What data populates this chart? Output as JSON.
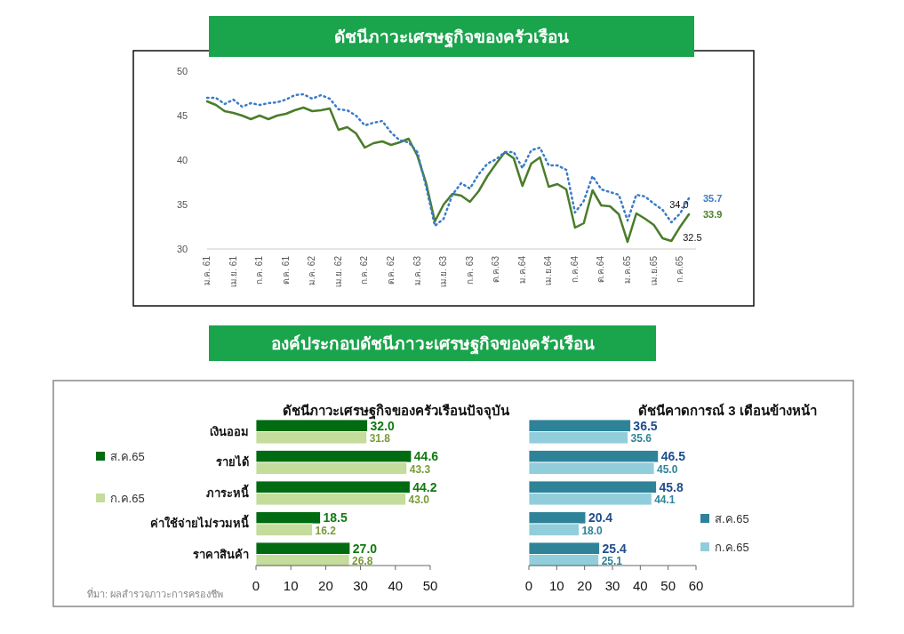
{
  "chart_data": [
    {
      "type": "line",
      "title": "ดัชนีภาวะเศรษฐกิจของครัวเรือน",
      "categories": [
        "ม.ค. 61",
        null,
        null,
        "เม.ย. 61",
        null,
        null,
        "ก.ค. 61",
        null,
        null,
        "ต.ค. 61",
        null,
        null,
        "ม.ค. 62",
        null,
        null,
        "เม.ย. 62",
        null,
        null,
        "ก.ค. 62",
        null,
        null,
        "ต.ค. 62",
        null,
        null,
        "ม.ค. 63",
        null,
        null,
        "เม.ย. 63",
        null,
        null,
        "ก.ค. 63",
        null,
        null,
        "ต.ค.63",
        null,
        null,
        "ม.ค.64",
        null,
        null,
        "เม.ย.64",
        null,
        null,
        "ก.ค.64",
        null,
        null,
        "ต.ค.64",
        null,
        null,
        "ม.ค.65",
        null,
        null,
        "เม.ย.65",
        null,
        null,
        "ก.ค.65",
        null
      ],
      "series": [
        {
          "color": "#4a7d2a",
          "line_style": "solid",
          "values": [
            46.6,
            46.2,
            45.5,
            45.3,
            45.0,
            44.6,
            45.0,
            44.6,
            45.0,
            45.2,
            45.6,
            45.9,
            45.5,
            45.6,
            45.8,
            43.4,
            43.7,
            43.0,
            41.4,
            41.9,
            42.1,
            41.7,
            42.0,
            42.4,
            40.5,
            37.4,
            33.1,
            35.0,
            36.2,
            36.0,
            35.3,
            36.5,
            38.2,
            39.6,
            40.9,
            40.2,
            37.1,
            39.6,
            40.3,
            37.0,
            37.3,
            36.7,
            32.4,
            32.9,
            36.6,
            34.9,
            34.8,
            33.9,
            30.8,
            34.0,
            33.4,
            32.7,
            31.2,
            30.9,
            32.5,
            33.9
          ],
          "value_labels": [
            null,
            null,
            null,
            null,
            null,
            null,
            null,
            null,
            null,
            null,
            null,
            null,
            null,
            null,
            null,
            null,
            null,
            null,
            null,
            null,
            null,
            null,
            null,
            null,
            null,
            null,
            null,
            null,
            null,
            null,
            null,
            null,
            null,
            null,
            null,
            null,
            null,
            null,
            null,
            null,
            null,
            null,
            null,
            null,
            null,
            null,
            null,
            null,
            null,
            null,
            null,
            null,
            null,
            null,
            "32.5",
            "33.9"
          ]
        },
        {
          "color": "#3a7cc8",
          "line_style": "dotted",
          "values": [
            47.0,
            47.0,
            46.3,
            46.8,
            46.0,
            46.4,
            46.2,
            46.4,
            46.5,
            46.8,
            47.3,
            47.4,
            46.9,
            47.3,
            46.9,
            45.7,
            45.6,
            45.0,
            43.9,
            44.2,
            44.4,
            43.1,
            42.2,
            42.0,
            40.9,
            37.0,
            32.6,
            33.4,
            36.1,
            37.4,
            36.8,
            38.4,
            39.6,
            40.1,
            40.9,
            40.9,
            39.1,
            41.1,
            41.4,
            39.4,
            39.4,
            38.9,
            34.1,
            35.4,
            38.2,
            36.7,
            36.4,
            36.1,
            33.2,
            36.1,
            35.9,
            35.1,
            34.4,
            33.0,
            34.0,
            35.7
          ],
          "value_labels": [
            null,
            null,
            null,
            null,
            null,
            null,
            null,
            null,
            null,
            null,
            null,
            null,
            null,
            null,
            null,
            null,
            null,
            null,
            null,
            null,
            null,
            null,
            null,
            null,
            null,
            null,
            null,
            null,
            null,
            null,
            null,
            null,
            null,
            null,
            null,
            null,
            null,
            null,
            null,
            null,
            null,
            null,
            null,
            null,
            null,
            null,
            null,
            null,
            null,
            null,
            null,
            null,
            null,
            null,
            "34.0",
            "35.7"
          ]
        }
      ],
      "ylim": [
        30,
        50
      ],
      "yticks": [
        30,
        35,
        40,
        45,
        50
      ],
      "grid": false,
      "marker": "none"
    },
    {
      "type": "bar",
      "orientation": "horizontal",
      "title": "องค์ประกอบดัชนีภาวะเศรษฐกิจของครัวเรือน",
      "subtitle": "ดัชนีภาวะเศรษฐกิจของครัวเรือนปัจจุบัน",
      "categories": [
        "เงินออม",
        "รายได้",
        "ภาระหนี้",
        "ค่าใช้จ่ายไม่รวมหนี้",
        "ราคาสินค้า"
      ],
      "series": [
        {
          "name": "ส.ค.65",
          "color": "#006b10",
          "values": [
            32.0,
            44.6,
            44.2,
            18.5,
            27.0
          ],
          "value_labels": [
            "32.0",
            "44.6",
            "44.2",
            "18.5",
            "27.0"
          ]
        },
        {
          "name": "ก.ค.65",
          "color": "#c4dc9c",
          "values": [
            31.8,
            43.3,
            43.0,
            16.2,
            26.8
          ],
          "value_labels": [
            "31.8",
            "43.3",
            "43.0",
            "16.2",
            "26.8"
          ]
        }
      ],
      "xlim": [
        0,
        50
      ],
      "xticks": [
        0,
        10,
        20,
        30,
        40,
        50
      ],
      "legend": "left",
      "grid": false,
      "annotations": [
        "ที่มา: ผลสำรวจภาวะการครองชีพ"
      ]
    },
    {
      "type": "bar",
      "orientation": "horizontal",
      "title": "ดัชนีคาดการณ์ 3 เดือนข้างหน้า",
      "categories": [
        null,
        null,
        null,
        null,
        null
      ],
      "series": [
        {
          "name": "ส.ค.65",
          "color": "#2e8399",
          "values": [
            36.5,
            46.5,
            45.8,
            20.4,
            25.4
          ],
          "value_labels": [
            "36.5",
            "46.5",
            "45.8",
            "20.4",
            "25.4"
          ]
        },
        {
          "name": "ก.ค.65",
          "color": "#92cddc",
          "values": [
            35.6,
            45.0,
            44.1,
            18.0,
            25.1
          ],
          "value_labels": [
            "35.6",
            "45.0",
            "44.1",
            "18.0",
            "25.1"
          ]
        }
      ],
      "xlim": [
        0,
        60
      ],
      "xticks": [
        0,
        10,
        20,
        30,
        40,
        50,
        60
      ],
      "legend": "right",
      "grid": false
    }
  ]
}
